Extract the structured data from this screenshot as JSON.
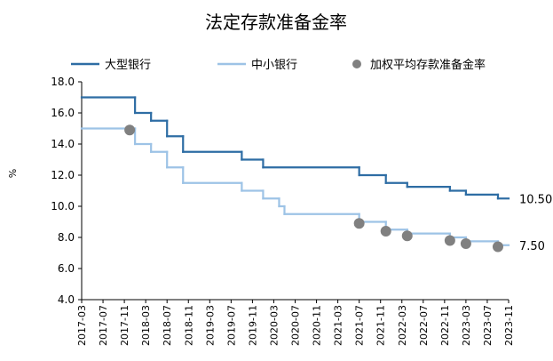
{
  "chart_data": {
    "type": "line",
    "title": "法定存款准备金率",
    "xlabel": "",
    "ylabel": "%",
    "ylim": [
      4,
      18
    ],
    "y_ticks": [
      "4.0",
      "6.0",
      "8.0",
      "10.0",
      "12.0",
      "14.0",
      "16.0",
      "18.0"
    ],
    "x_ticks": [
      "2017-03",
      "2017-07",
      "2017-11",
      "2018-03",
      "2018-07",
      "2018-11",
      "2019-03",
      "2019-07",
      "2019-11",
      "2020-03",
      "2020-07",
      "2020-11",
      "2021-03",
      "2021-07",
      "2021-11",
      "2022-03",
      "2022-07",
      "2022-11",
      "2023-03",
      "2023-07",
      "2023-11"
    ],
    "grid": false,
    "legend_position": "top",
    "series": [
      {
        "name": "大型银行",
        "style": "step-line",
        "color": "#2e6da4",
        "points": [
          [
            "2017-03",
            17.0
          ],
          [
            "2018-01",
            17.0
          ],
          [
            "2018-01",
            16.0
          ],
          [
            "2018-04",
            16.0
          ],
          [
            "2018-04",
            15.5
          ],
          [
            "2018-07",
            15.5
          ],
          [
            "2018-07",
            14.5
          ],
          [
            "2018-10",
            14.5
          ],
          [
            "2018-10",
            13.5
          ],
          [
            "2019-09",
            13.5
          ],
          [
            "2019-09",
            13.0
          ],
          [
            "2020-01",
            13.0
          ],
          [
            "2020-01",
            12.5
          ],
          [
            "2021-07",
            12.5
          ],
          [
            "2021-07",
            12.0
          ],
          [
            "2021-12",
            12.0
          ],
          [
            "2021-12",
            11.5
          ],
          [
            "2022-04",
            11.5
          ],
          [
            "2022-04",
            11.25
          ],
          [
            "2022-12",
            11.25
          ],
          [
            "2022-12",
            11.0
          ],
          [
            "2023-03",
            11.0
          ],
          [
            "2023-03",
            10.75
          ],
          [
            "2023-09",
            10.75
          ],
          [
            "2023-09",
            10.5
          ],
          [
            "2023-11",
            10.5
          ]
        ],
        "end_label": "10.50"
      },
      {
        "name": "中小银行",
        "style": "step-line",
        "color": "#9dc3e6",
        "points": [
          [
            "2017-03",
            15.0
          ],
          [
            "2018-01",
            15.0
          ],
          [
            "2018-01",
            14.0
          ],
          [
            "2018-04",
            14.0
          ],
          [
            "2018-04",
            13.5
          ],
          [
            "2018-07",
            13.5
          ],
          [
            "2018-07",
            12.5
          ],
          [
            "2018-10",
            12.5
          ],
          [
            "2018-10",
            11.5
          ],
          [
            "2019-09",
            11.5
          ],
          [
            "2019-09",
            11.0
          ],
          [
            "2020-01",
            11.0
          ],
          [
            "2020-01",
            10.5
          ],
          [
            "2020-04",
            10.5
          ],
          [
            "2020-04",
            10.0
          ],
          [
            "2020-05",
            10.0
          ],
          [
            "2020-05",
            9.5
          ],
          [
            "2021-07",
            9.5
          ],
          [
            "2021-07",
            9.0
          ],
          [
            "2021-12",
            9.0
          ],
          [
            "2021-12",
            8.5
          ],
          [
            "2022-04",
            8.5
          ],
          [
            "2022-04",
            8.25
          ],
          [
            "2022-12",
            8.25
          ],
          [
            "2022-12",
            8.0
          ],
          [
            "2023-03",
            8.0
          ],
          [
            "2023-03",
            7.75
          ],
          [
            "2023-09",
            7.75
          ],
          [
            "2023-09",
            7.5
          ],
          [
            "2023-11",
            7.5
          ]
        ],
        "end_label": "7.50"
      },
      {
        "name": "加权平均存款准备金率",
        "style": "scatter",
        "color": "#808080",
        "points": [
          [
            "2017-12",
            14.9
          ],
          [
            "2021-07",
            8.9
          ],
          [
            "2021-12",
            8.4
          ],
          [
            "2022-04",
            8.1
          ],
          [
            "2022-12",
            7.8
          ],
          [
            "2023-03",
            7.6
          ],
          [
            "2023-09",
            7.4
          ]
        ]
      }
    ]
  }
}
